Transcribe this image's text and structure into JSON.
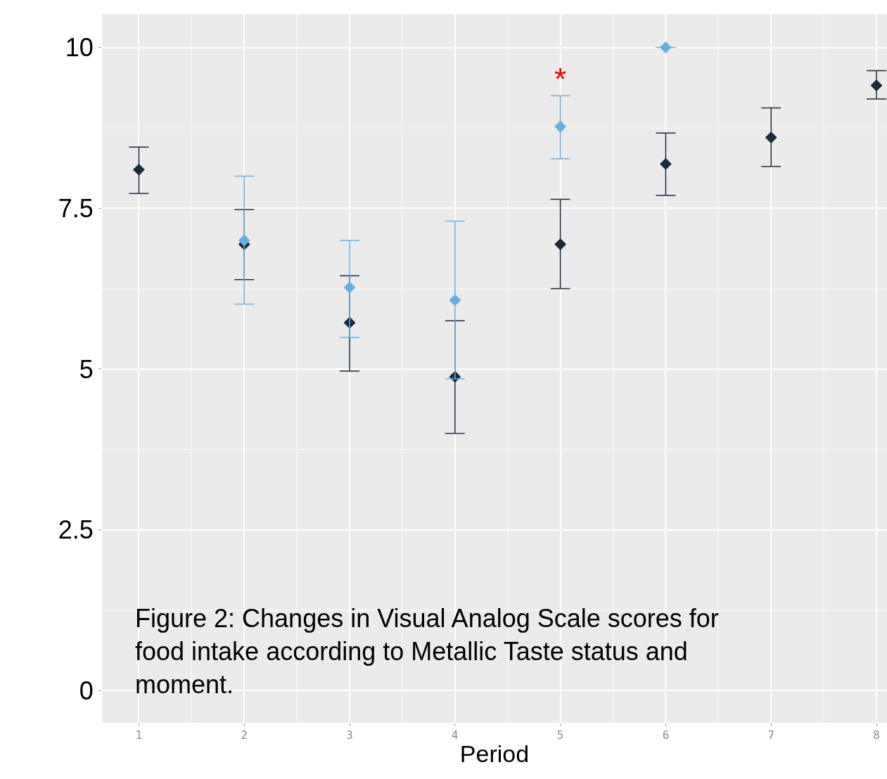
{
  "chart_data": {
    "type": "scatter",
    "xlabel": "Period",
    "x": [
      1,
      2,
      3,
      4,
      5,
      6,
      7,
      8
    ],
    "series": [
      {
        "color": "#1b2b3c",
        "values": [
          8.1,
          6.94,
          5.72,
          4.88,
          6.94,
          8.19,
          8.6,
          9.41
        ],
        "errors": [
          [
            7.73,
            8.45
          ],
          [
            6.39,
            7.48
          ],
          [
            4.97,
            6.45
          ],
          [
            4.0,
            5.75
          ],
          [
            6.25,
            7.64
          ],
          [
            7.7,
            8.67
          ],
          [
            8.15,
            9.06
          ],
          [
            9.2,
            9.64
          ]
        ]
      },
      {
        "color": "#6aaee0",
        "values": [
          null,
          7.0,
          6.27,
          6.07,
          8.77,
          10.0,
          null,
          null
        ],
        "errors": [
          null,
          [
            6.01,
            8.0
          ],
          [
            5.49,
            7.0
          ],
          [
            4.85,
            7.3
          ],
          [
            8.27,
            9.25
          ],
          null,
          null,
          null
        ]
      }
    ],
    "annotations": [
      "*",
      "Figure 2: Changes in Visual Analog Scale scores for food intake according to Metallic Taste status and moment."
    ],
    "xlim": [
      0.65,
      8.1
    ],
    "ylim": [
      -0.5,
      10.52
    ],
    "xticks": [
      1,
      2,
      3,
      4,
      5,
      6,
      7,
      8
    ],
    "yticks": [
      0,
      2.5,
      5,
      7.5,
      10
    ],
    "grid": true,
    "marker": "diamond"
  }
}
